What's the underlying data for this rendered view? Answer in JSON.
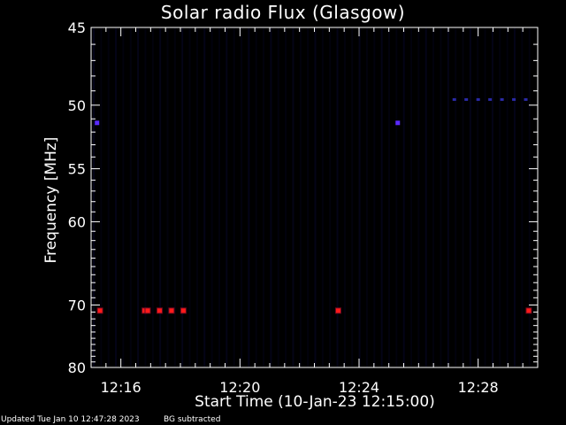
{
  "chart_data": {
    "type": "heatmap",
    "title": "Solar radio Flux (Glasgow)",
    "xlabel": "Start Time (10-Jan-23 12:15:00)",
    "ylabel": "Frequency [MHz]",
    "x_unit": "minutes after 12:00",
    "xlim": [
      15.0,
      30.0
    ],
    "ylim": [
      45,
      80
    ],
    "x_ticks": [
      16,
      20,
      24,
      28
    ],
    "x_tick_labels": [
      "12:16",
      "12:20",
      "12:24",
      "12:28"
    ],
    "y_ticks": [
      45,
      50,
      55,
      60,
      70,
      80
    ],
    "y_tick_labels": [
      "45",
      "50",
      "55",
      "60",
      "70",
      "80"
    ],
    "hot_spots": [
      {
        "t": 15.3,
        "f": 70.8,
        "level": "high"
      },
      {
        "t": 16.8,
        "f": 70.8,
        "level": "high"
      },
      {
        "t": 16.9,
        "f": 70.8,
        "level": "high"
      },
      {
        "t": 17.3,
        "f": 70.8,
        "level": "high"
      },
      {
        "t": 17.7,
        "f": 70.8,
        "level": "high"
      },
      {
        "t": 18.1,
        "f": 70.8,
        "level": "high"
      },
      {
        "t": 23.3,
        "f": 70.8,
        "level": "high"
      },
      {
        "t": 29.7,
        "f": 70.8,
        "level": "high"
      },
      {
        "t": 15.2,
        "f": 51.3,
        "level": "medium"
      },
      {
        "t": 25.3,
        "f": 51.3,
        "level": "medium"
      },
      {
        "t": 27.2,
        "f": 49.6,
        "level": "low"
      },
      {
        "t": 27.6,
        "f": 49.6,
        "level": "low"
      },
      {
        "t": 28.0,
        "f": 49.6,
        "level": "low"
      },
      {
        "t": 28.4,
        "f": 49.6,
        "level": "low"
      },
      {
        "t": 28.8,
        "f": 49.6,
        "level": "low"
      },
      {
        "t": 29.2,
        "f": 49.6,
        "level": "low"
      },
      {
        "t": 29.6,
        "f": 49.6,
        "level": "low"
      }
    ],
    "colors": {
      "background": "#000000",
      "noise": "#07072a",
      "low": "#2a2aa8",
      "medium": "#5a2aff",
      "high": "#ff1a1a",
      "axes": "#ffffff"
    }
  },
  "footer": {
    "updated": "Updated Tue Jan 10 12:47:28 2023",
    "note": "BG subtracted"
  }
}
